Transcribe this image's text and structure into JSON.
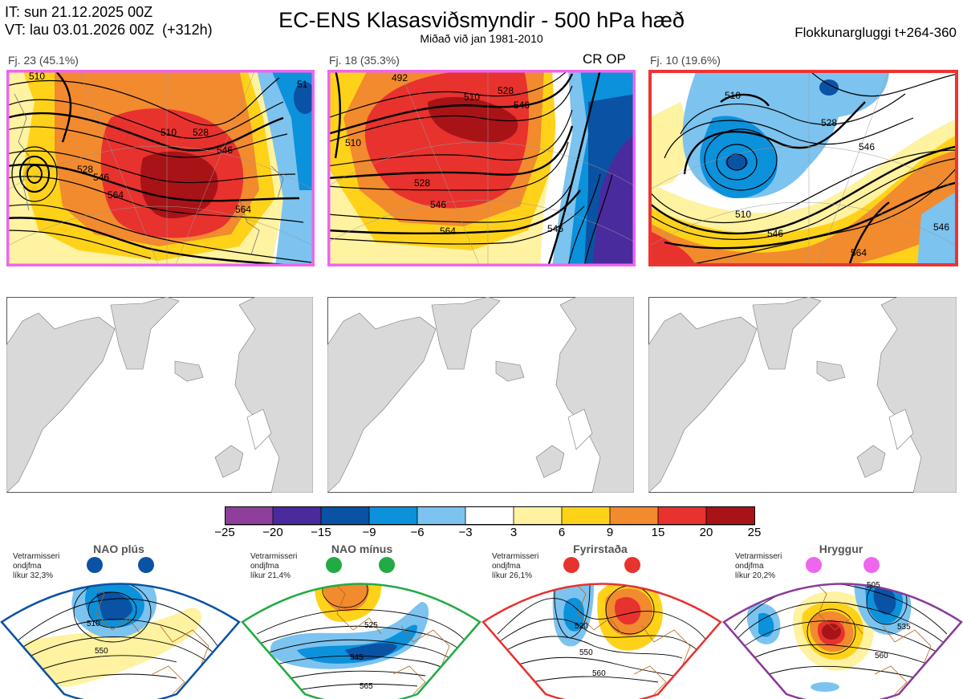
{
  "header": {
    "it_line": "IT: sun 21.12.2025 00Z",
    "vt_line": "VT: lau 03.01.2026 00Z  (+312h)",
    "title": "EC-ENS Klasasviðsmyndir - 500 hPa hæð",
    "subtitle": "Miðað við jan 1981-2010",
    "window": "Flokkunargluggi t+264-360"
  },
  "panels": [
    {
      "label": "Fj. 23 (45.1%)",
      "frame_color": "#ee66ee",
      "contours": [
        "510",
        "528",
        "546",
        "564",
        "510",
        "528",
        "546",
        "564",
        "51"
      ]
    },
    {
      "label": "Fj. 18 (35.3%)",
      "frame_color": "#ee66ee",
      "tag": "CR OP",
      "contours": [
        "510",
        "528",
        "546",
        "564",
        "528",
        "510",
        "546",
        "546",
        "492"
      ]
    },
    {
      "label": "Fj. 10 (19.6%)",
      "frame_color": "#ee3333",
      "contours": [
        "510",
        "528",
        "546",
        "546",
        "564",
        "510",
        "546"
      ]
    }
  ],
  "colorbar": {
    "ticks": [
      "−25",
      "−20",
      "−15",
      "−9",
      "−6",
      "−3",
      "3",
      "6",
      "9",
      "15",
      "20",
      "25"
    ],
    "colors": [
      "#8e3f9c",
      "#4a2b9e",
      "#0a52a3",
      "#0c91db",
      "#7cc3ef",
      "#ffffff",
      "#fff2a0",
      "#ffd21a",
      "#f28a2e",
      "#e8322e",
      "#a81317"
    ]
  },
  "regimes": [
    {
      "name": "NAO plús",
      "info": [
        "Vetrarmisseri",
        "ondjfma",
        "líkur 32,3%"
      ],
      "color": "#0a52a3",
      "dot": "#0a52a3",
      "contours": [
        "510",
        "550"
      ]
    },
    {
      "name": "NAO mínus",
      "info": [
        "Vetrarmisseri",
        "ondjfma",
        "líkur 21,4%"
      ],
      "color": "#22aa44",
      "dot": "#22aa44",
      "contours": [
        "525",
        "545",
        "565"
      ]
    },
    {
      "name": "Fyrirstaða",
      "info": [
        "Vetrarmisseri",
        "ondjfma",
        "líkur 26,1%"
      ],
      "color": "#e8322e",
      "dot": "#e8322e",
      "contours": [
        "520",
        "550",
        "560"
      ]
    },
    {
      "name": "Hryggur",
      "info": [
        "Vetrarmisseri",
        "ondjfma",
        "líkur 20,2%"
      ],
      "color": "#8a3a9a",
      "dot": "#ee66ee",
      "contours": [
        "505",
        "535",
        "560"
      ]
    }
  ]
}
